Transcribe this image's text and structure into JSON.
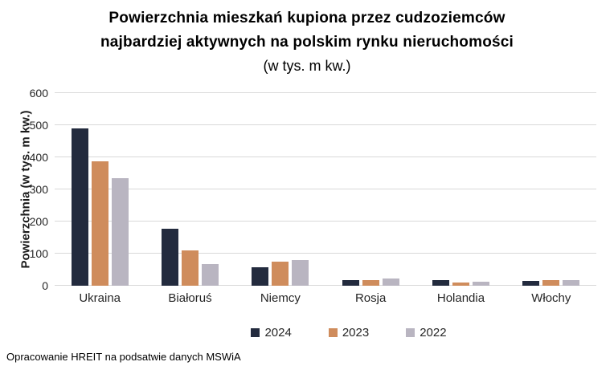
{
  "title": {
    "line1": "Powierzchnia mieszkań kupiona przez cudzoziemców",
    "line2": "najbardziej aktywnych na polskim rynku nieruchomości",
    "subtitle": "(w tys. m kw.)"
  },
  "footer": "Opracowanie HREIT na podsatwie danych MSWiA",
  "chart_data": {
    "type": "bar",
    "title": "Powierzchnia mieszkań kupiona przez cudzoziemców najbardziej aktywnych na polskim rynku nieruchomości",
    "subtitle": "(w tys. m kw.)",
    "xlabel": "",
    "ylabel": "Powierzchnia (w tys. m kw.)",
    "ylim": [
      0,
      600
    ],
    "yticks": [
      0,
      100,
      200,
      300,
      400,
      500,
      600
    ],
    "grid": true,
    "legend_position": "bottom",
    "categories": [
      "Ukraina",
      "Białoruś",
      "Niemcy",
      "Rosja",
      "Holandia",
      "Włochy"
    ],
    "series": [
      {
        "name": "2024",
        "color": "#232b3e",
        "values": [
          490,
          178,
          57,
          18,
          18,
          15
        ]
      },
      {
        "name": "2023",
        "color": "#cf8c5c",
        "values": [
          388,
          111,
          75,
          17,
          10,
          17
        ]
      },
      {
        "name": "2022",
        "color": "#b9b5c1",
        "values": [
          335,
          68,
          80,
          22,
          13,
          17
        ]
      }
    ]
  }
}
